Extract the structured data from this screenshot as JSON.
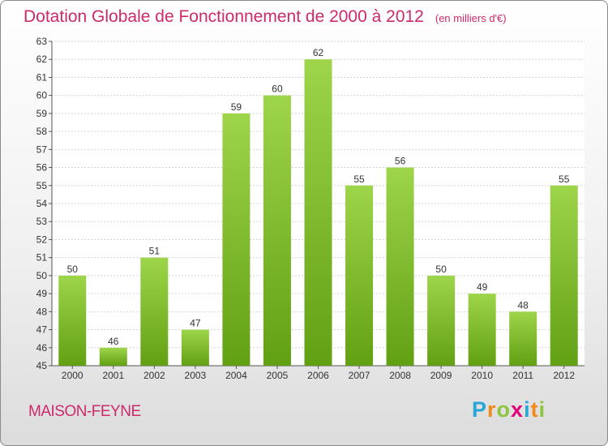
{
  "title": "Dotation Globale de Fonctionnement de 2000 à 2012",
  "unit_note": "(en milliers d'€)",
  "commune": "MAISON-FEYNE",
  "brand": {
    "letters": [
      "P",
      "r",
      "o",
      "x",
      "i",
      "t",
      "i"
    ],
    "colors": [
      "#2aa6d6",
      "#f28a1a",
      "#8cc63f",
      "#e2007a",
      "#2aa6d6",
      "#f28a1a",
      "#8cc63f"
    ]
  },
  "colors": {
    "bar_top": "#9ed54a",
    "bar_bottom": "#62a013",
    "title": "#cc2a6a",
    "axis": "#555555",
    "grid": "#d6d6d6"
  },
  "chart_data": {
    "type": "bar",
    "title": "Dotation Globale de Fonctionnement de 2000 à 2012",
    "ylabel": "",
    "xlabel": "",
    "categories": [
      "2000",
      "2001",
      "2002",
      "2003",
      "2004",
      "2005",
      "2006",
      "2007",
      "2008",
      "2009",
      "2010",
      "2011",
      "2012"
    ],
    "values": [
      50,
      46,
      51,
      47,
      59,
      60,
      62,
      55,
      56,
      50,
      49,
      48,
      55
    ],
    "ylim": [
      45,
      63
    ],
    "grid": true,
    "legend": "none"
  }
}
